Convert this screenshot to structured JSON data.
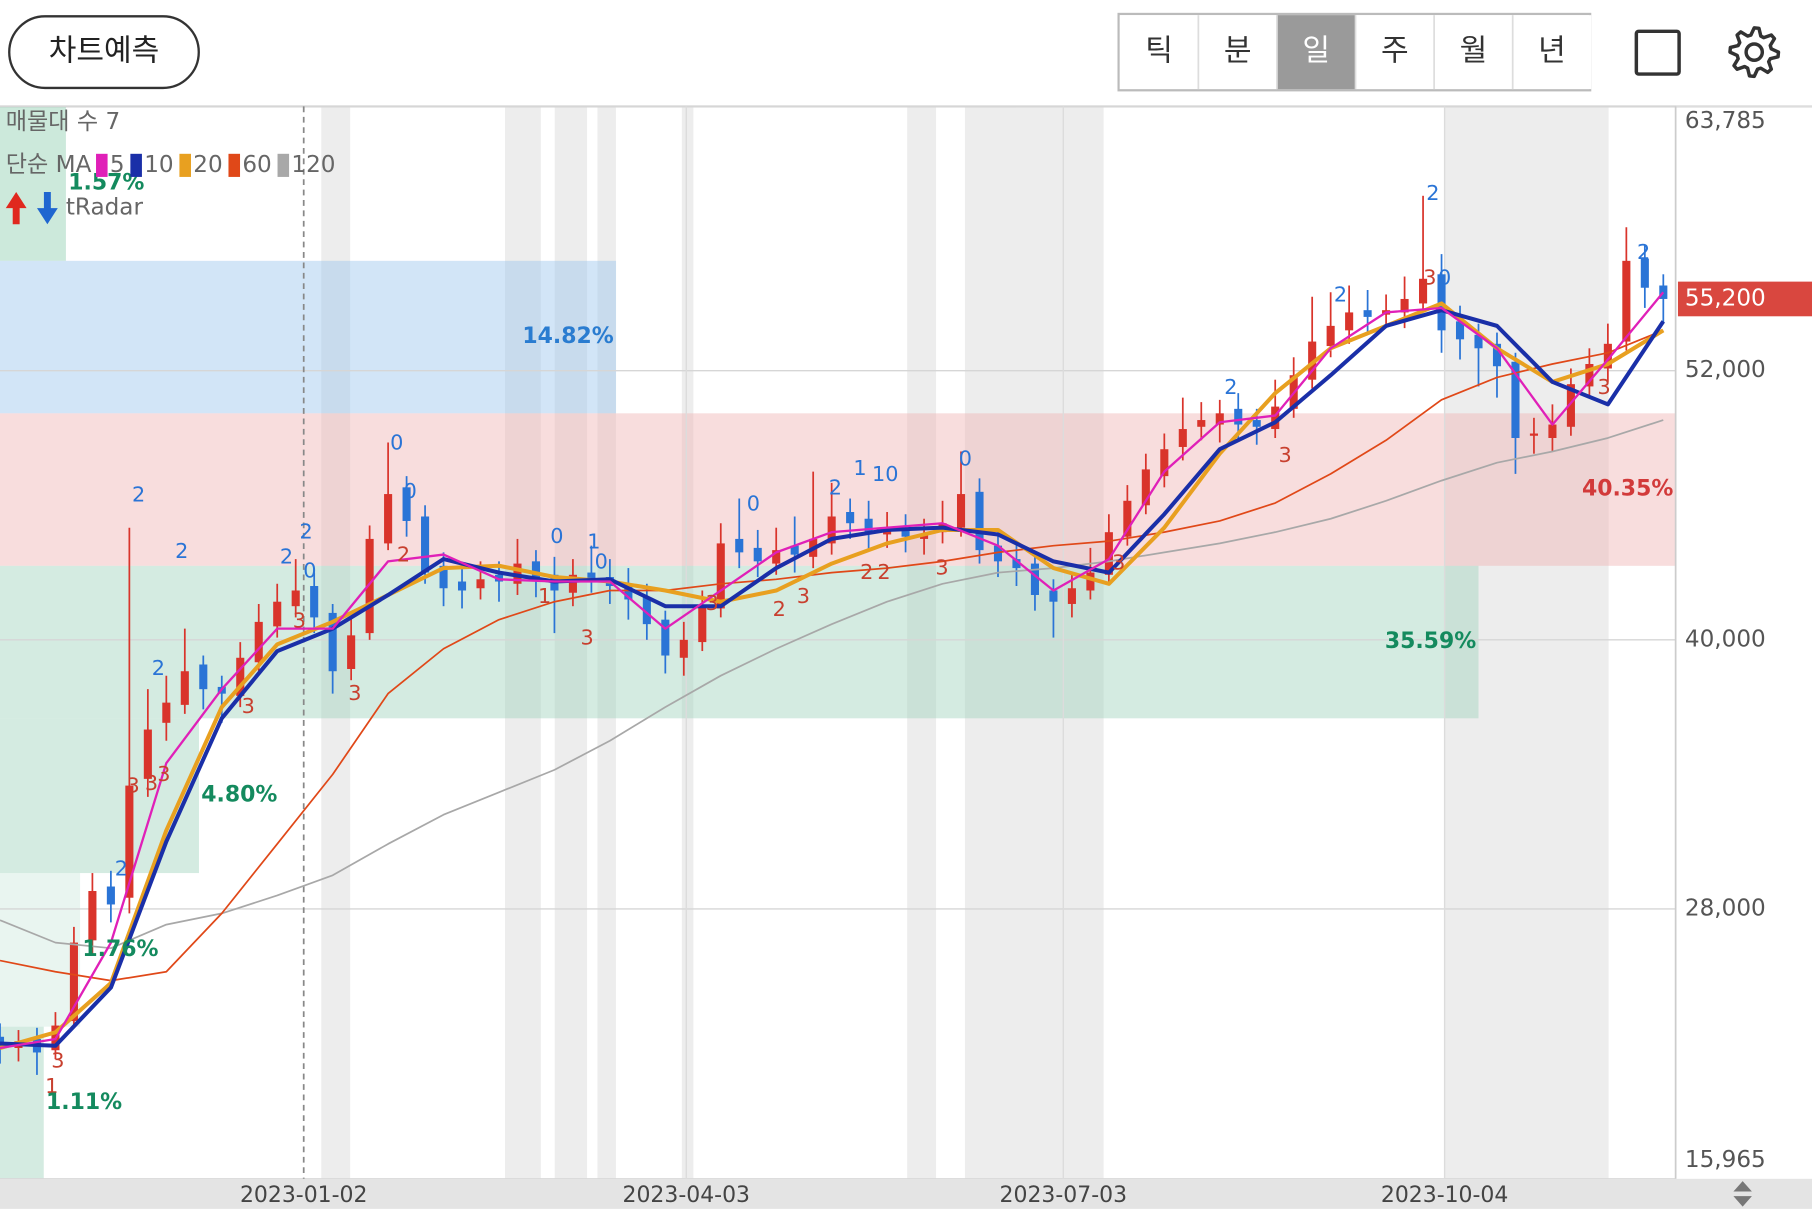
{
  "toolbar": {
    "predict_button": "차트예측",
    "periods": [
      "틱",
      "분",
      "일",
      "주",
      "월",
      "년"
    ],
    "selected": 2
  },
  "chart_data": {
    "type": "candlestick",
    "legend_title": "매물대 수 7",
    "ma_title": "단순 MA",
    "radar_label": "tRadar",
    "x": [
      0,
      3,
      6,
      9,
      12,
      15,
      18,
      21,
      24,
      27,
      30,
      33,
      36,
      39,
      42,
      45,
      48,
      51,
      54,
      57,
      60,
      63,
      66,
      69,
      72,
      75,
      78,
      81,
      84,
      87,
      90,
      93,
      96,
      99,
      102,
      105,
      108,
      111,
      114,
      117,
      120,
      123,
      126,
      129,
      132,
      135,
      138,
      141,
      144,
      147,
      150,
      153,
      156,
      159,
      162,
      165,
      168,
      171,
      174,
      177,
      180,
      183,
      186,
      189,
      192,
      195,
      198,
      201,
      204,
      207,
      210,
      213,
      216,
      219,
      222,
      225,
      228,
      231,
      234,
      237,
      240,
      243,
      246,
      249,
      252,
      255,
      258,
      261,
      264,
      267,
      270
    ],
    "open": [
      22300,
      21800,
      22200,
      21700,
      23000,
      26600,
      29000,
      28500,
      33800,
      36300,
      37100,
      38900,
      37900,
      37500,
      39000,
      40600,
      41500,
      42400,
      41200,
      38700,
      40300,
      44300,
      46800,
      45500,
      43300,
      42600,
      42300,
      42900,
      42500,
      43500,
      42900,
      42100,
      43000,
      42800,
      42500,
      41900,
      40900,
      39200,
      39900,
      41400,
      44500,
      44100,
      43400,
      44200,
      43700,
      44300,
      45700,
      45400,
      44700,
      45000,
      44500,
      44800,
      45000,
      46600,
      44200,
      43600,
      43400,
      42200,
      41600,
      42200,
      42900,
      44600,
      46000,
      47300,
      48600,
      49500,
      49600,
      50300,
      49800,
      49400,
      50300,
      51600,
      53100,
      53800,
      54700,
      54500,
      54600,
      55000,
      56300,
      54200,
      53600,
      53200,
      52400,
      49100,
      49000,
      49500,
      51300,
      52100,
      53300,
      57000,
      55800
    ],
    "high": [
      22900,
      22600,
      22700,
      23400,
      27200,
      29600,
      29700,
      45000,
      37800,
      38400,
      40500,
      39300,
      38400,
      39900,
      41600,
      42500,
      43600,
      43000,
      41600,
      41000,
      45100,
      48800,
      47300,
      46000,
      43900,
      43200,
      43500,
      43500,
      44500,
      44000,
      43700,
      43600,
      44200,
      43600,
      43200,
      42500,
      41300,
      40800,
      42200,
      45200,
      46300,
      44900,
      45000,
      45500,
      47500,
      47000,
      46300,
      46200,
      45700,
      45600,
      45400,
      46200,
      48400,
      47200,
      44800,
      44300,
      43900,
      42700,
      43000,
      44100,
      45600,
      46900,
      48300,
      49200,
      50800,
      50600,
      50700,
      51000,
      50300,
      51600,
      52600,
      55300,
      55500,
      55800,
      55600,
      55400,
      56200,
      59800,
      57200,
      54900,
      54100,
      53700,
      52800,
      49900,
      50500,
      52100,
      53000,
      54100,
      58400,
      57600,
      56300
    ],
    "low": [
      21100,
      21200,
      20600,
      21300,
      22700,
      26000,
      27400,
      27800,
      33000,
      35500,
      36700,
      36900,
      36300,
      37000,
      38600,
      40100,
      41000,
      40300,
      37600,
      38200,
      40000,
      44000,
      44600,
      42500,
      41500,
      41400,
      41800,
      41700,
      42000,
      41900,
      40300,
      41500,
      42100,
      41600,
      40900,
      40000,
      38500,
      38400,
      39500,
      41000,
      43200,
      42800,
      42900,
      43000,
      43200,
      43800,
      44500,
      44000,
      44100,
      43900,
      43800,
      44300,
      44600,
      43400,
      42800,
      42400,
      41300,
      40100,
      41000,
      41800,
      42600,
      44200,
      45600,
      46800,
      48000,
      48900,
      48800,
      48900,
      48700,
      49000,
      49900,
      51200,
      52600,
      53200,
      53700,
      53900,
      53900,
      54600,
      52800,
      52500,
      51300,
      50800,
      47400,
      48300,
      48400,
      49100,
      50800,
      51500,
      52900,
      54800,
      54100
    ],
    "close": [
      21800,
      22100,
      21600,
      22800,
      26500,
      28800,
      28200,
      33500,
      36000,
      37200,
      38600,
      37800,
      37600,
      39200,
      40800,
      41700,
      42200,
      41000,
      38600,
      40200,
      44500,
      46500,
      45300,
      43000,
      42300,
      42200,
      42700,
      42600,
      43400,
      42800,
      42200,
      42900,
      42700,
      42400,
      41800,
      40700,
      39300,
      40000,
      41500,
      44300,
      43900,
      43500,
      44000,
      43800,
      44500,
      45500,
      45200,
      44800,
      44900,
      44600,
      44700,
      45200,
      46500,
      44000,
      43500,
      43200,
      42000,
      41700,
      42300,
      43000,
      44800,
      46200,
      47600,
      48500,
      49400,
      49800,
      50100,
      49600,
      49500,
      50400,
      51800,
      53300,
      54000,
      54600,
      54400,
      54700,
      55200,
      56100,
      53800,
      53400,
      53000,
      52200,
      49000,
      49200,
      49600,
      51400,
      52300,
      53200,
      56900,
      55700,
      55200
    ],
    "up_color": "#d9342b",
    "down_color": "#2a74d6",
    "xlim": [
      0,
      272
    ],
    "xticks": [
      {
        "value": 49.3,
        "label": "2023-01-02"
      },
      {
        "value": 111.4,
        "label": "2023-04-03"
      },
      {
        "value": 172.6,
        "label": "2023-07-03"
      },
      {
        "value": 234.5,
        "label": "2023-10-04"
      }
    ],
    "ylim": [
      15965,
      63785
    ],
    "yticks": [
      {
        "value": 15965,
        "label": "15,965"
      },
      {
        "value": 28000,
        "label": "28,000"
      },
      {
        "value": 40000,
        "label": "40,000"
      },
      {
        "value": 52000,
        "label": "52,000"
      },
      {
        "value": 63785,
        "label": "63,785"
      }
    ],
    "grid": true,
    "last_price": {
      "value": 55200,
      "label": "55,200",
      "color": "#d9473f"
    },
    "ma_x": [
      0,
      9,
      18,
      27,
      36,
      45,
      54,
      63,
      72,
      81,
      90,
      99,
      108,
      117,
      126,
      135,
      144,
      153,
      162,
      171,
      180,
      189,
      198,
      207,
      216,
      225,
      234,
      243,
      252,
      261,
      270
    ],
    "ma": [
      {
        "name": "5",
        "color": "#e020b8",
        "values": [
          21800,
          22200,
          26500,
          34500,
          37800,
          40500,
          40500,
          43500,
          43800,
          42700,
          42600,
          42600,
          40500,
          42200,
          43900,
          44800,
          45000,
          45200,
          44200,
          42200,
          43600,
          47500,
          49700,
          50000,
          53000,
          54600,
          54800,
          53000,
          49600,
          52500,
          55500
        ]
      },
      {
        "name": "10",
        "color": "#1a2fa8",
        "values": [
          22000,
          21900,
          24500,
          31000,
          36500,
          39500,
          40500,
          42000,
          43600,
          43000,
          42600,
          42700,
          41500,
          41500,
          43200,
          44500,
          44900,
          45000,
          44700,
          43500,
          43000,
          45600,
          48500,
          49700,
          51800,
          54000,
          54700,
          54000,
          51500,
          50500,
          54200
        ]
      },
      {
        "name": "20",
        "color": "#e8a020",
        "values": [
          21800,
          22500,
          24700,
          31500,
          37000,
          39800,
          40800,
          42000,
          43200,
          43300,
          42800,
          42600,
          42200,
          41700,
          42200,
          43400,
          44300,
          44900,
          44900,
          43200,
          42500,
          45000,
          48300,
          51000,
          53000,
          54000,
          55000,
          53000,
          51500,
          52300,
          53800
        ]
      },
      {
        "name": "60",
        "color": "#e04818",
        "values": [
          25700,
          25200,
          24800,
          25200,
          27800,
          30900,
          34000,
          37600,
          39600,
          40900,
          41700,
          42200,
          42200,
          42500,
          42700,
          43000,
          43200,
          43500,
          43900,
          44200,
          44400,
          44800,
          45300,
          46100,
          47400,
          48900,
          50700,
          51700,
          52300,
          52800,
          53800
        ]
      },
      {
        "name": "120",
        "color": "#a8a8a8",
        "values": [
          27500,
          26500,
          26250,
          27300,
          27800,
          28600,
          29500,
          30900,
          32200,
          33200,
          34200,
          35500,
          37000,
          38400,
          39600,
          40700,
          41700,
          42500,
          43000,
          43200,
          43500,
          43900,
          44300,
          44800,
          45400,
          46200,
          47100,
          47900,
          48400,
          49000,
          49800
        ]
      }
    ],
    "volume_bands": [
      {
        "label": "1.57%",
        "low": 56900,
        "high": 63785,
        "end": 10.7,
        "color": "#8fcfb0",
        "label_color": "#148a5e"
      },
      {
        "label": "14.82%",
        "low": 50100,
        "high": 56900,
        "end": 100,
        "color": "#9cc6ee",
        "label_color": "#2a7cd0"
      },
      {
        "label": "40.35%",
        "low": 43300,
        "high": 50100,
        "end": 272,
        "color": "#f0b4b4",
        "label_color": "#d23a3a"
      },
      {
        "label": "35.59%",
        "low": 36500,
        "high": 43300,
        "end": 240,
        "color": "#9fd2bd",
        "label_color": "#148a5e"
      },
      {
        "label": "4.80%",
        "low": 29600,
        "high": 36500,
        "end": 32.3,
        "color": "#9fd2bd",
        "label_color": "#148a5e"
      },
      {
        "label": "1.76%",
        "low": 22750,
        "high": 29600,
        "end": 13,
        "color": "#cfe9de",
        "label_color": "#148a5e"
      },
      {
        "label": "1.11%",
        "low": 15965,
        "high": 22750,
        "end": 7.1,
        "color": "#9fd2bd",
        "label_color": "#148a5e"
      }
    ],
    "signals": [
      {
        "x": 22.5,
        "price": 46440,
        "label": "2",
        "color": "#2a74d6"
      },
      {
        "x": 29.5,
        "price": 43910,
        "label": "2",
        "color": "#2a74d6"
      },
      {
        "x": 46.5,
        "price": 43660,
        "label": "2",
        "color": "#2a74d6"
      },
      {
        "x": 49.7,
        "price": 44790,
        "label": "2",
        "color": "#2a74d6"
      },
      {
        "x": 50.3,
        "price": 43040,
        "label": "0",
        "color": "#2a74d6"
      },
      {
        "x": 64.4,
        "price": 48760,
        "label": "0",
        "color": "#2a74d6"
      },
      {
        "x": 66.6,
        "price": 46590,
        "label": "0",
        "color": "#2a74d6"
      },
      {
        "x": 65.5,
        "price": 43760,
        "label": "2",
        "color": "#c8402f"
      },
      {
        "x": 48.6,
        "price": 40820,
        "label": "3",
        "color": "#c8402f"
      },
      {
        "x": 57.6,
        "price": 37580,
        "label": "3",
        "color": "#c8402f"
      },
      {
        "x": 25.7,
        "price": 38710,
        "label": "2",
        "color": "#2a74d6"
      },
      {
        "x": 21.6,
        "price": 33460,
        "label": "3",
        "color": "#c8402f"
      },
      {
        "x": 24.6,
        "price": 33560,
        "label": "3",
        "color": "#c8402f"
      },
      {
        "x": 26.6,
        "price": 33970,
        "label": "3",
        "color": "#c8402f"
      },
      {
        "x": 40.3,
        "price": 37010,
        "label": "3",
        "color": "#c8402f"
      },
      {
        "x": 19.7,
        "price": 29750,
        "label": "2",
        "color": "#2a74d6"
      },
      {
        "x": 9.4,
        "price": 21200,
        "label": "3",
        "color": "#c8402f"
      },
      {
        "x": 8.4,
        "price": 20070,
        "label": "1",
        "color": "#c8402f"
      },
      {
        "x": 90.4,
        "price": 44580,
        "label": "0",
        "color": "#2a74d6"
      },
      {
        "x": 96.4,
        "price": 44330,
        "label": "1",
        "color": "#2a74d6"
      },
      {
        "x": 97.6,
        "price": 43450,
        "label": "0",
        "color": "#2a74d6"
      },
      {
        "x": 88.4,
        "price": 41910,
        "label": "1",
        "color": "#c8402f"
      },
      {
        "x": 95.3,
        "price": 40050,
        "label": "3",
        "color": "#c8402f"
      },
      {
        "x": 122.3,
        "price": 46030,
        "label": "0",
        "color": "#2a74d6"
      },
      {
        "x": 115.6,
        "price": 41600,
        "label": "3",
        "color": "#c8402f"
      },
      {
        "x": 126.5,
        "price": 41340,
        "label": "2",
        "color": "#c8402f"
      },
      {
        "x": 130.4,
        "price": 41910,
        "label": "3",
        "color": "#c8402f"
      },
      {
        "x": 135.6,
        "price": 46750,
        "label": "2",
        "color": "#2a74d6"
      },
      {
        "x": 139.6,
        "price": 47620,
        "label": "1",
        "color": "#2a74d6"
      },
      {
        "x": 143.7,
        "price": 47360,
        "label": "10",
        "color": "#2a74d6"
      },
      {
        "x": 140.7,
        "price": 42990,
        "label": "2",
        "color": "#c8402f"
      },
      {
        "x": 143.5,
        "price": 42990,
        "label": "2",
        "color": "#c8402f"
      },
      {
        "x": 156.7,
        "price": 48030,
        "label": "0",
        "color": "#2a74d6"
      },
      {
        "x": 152.9,
        "price": 43190,
        "label": "3",
        "color": "#c8402f"
      },
      {
        "x": 181.6,
        "price": 43400,
        "label": "3",
        "color": "#c8402f"
      },
      {
        "x": 199.8,
        "price": 51230,
        "label": "2",
        "color": "#2a74d6"
      },
      {
        "x": 208.6,
        "price": 48190,
        "label": "3",
        "color": "#c8402f"
      },
      {
        "x": 217.6,
        "price": 55350,
        "label": "2",
        "color": "#2a74d6"
      },
      {
        "x": 232.6,
        "price": 59880,
        "label": "2",
        "color": "#2a74d6"
      },
      {
        "x": 234.5,
        "price": 56120,
        "label": "0",
        "color": "#2a74d6"
      },
      {
        "x": 232.1,
        "price": 56120,
        "label": "3",
        "color": "#c8402f"
      },
      {
        "x": 266.8,
        "price": 57250,
        "label": "2",
        "color": "#2a74d6"
      },
      {
        "x": 260.4,
        "price": 51230,
        "label": "3",
        "color": "#c8402f"
      }
    ]
  }
}
